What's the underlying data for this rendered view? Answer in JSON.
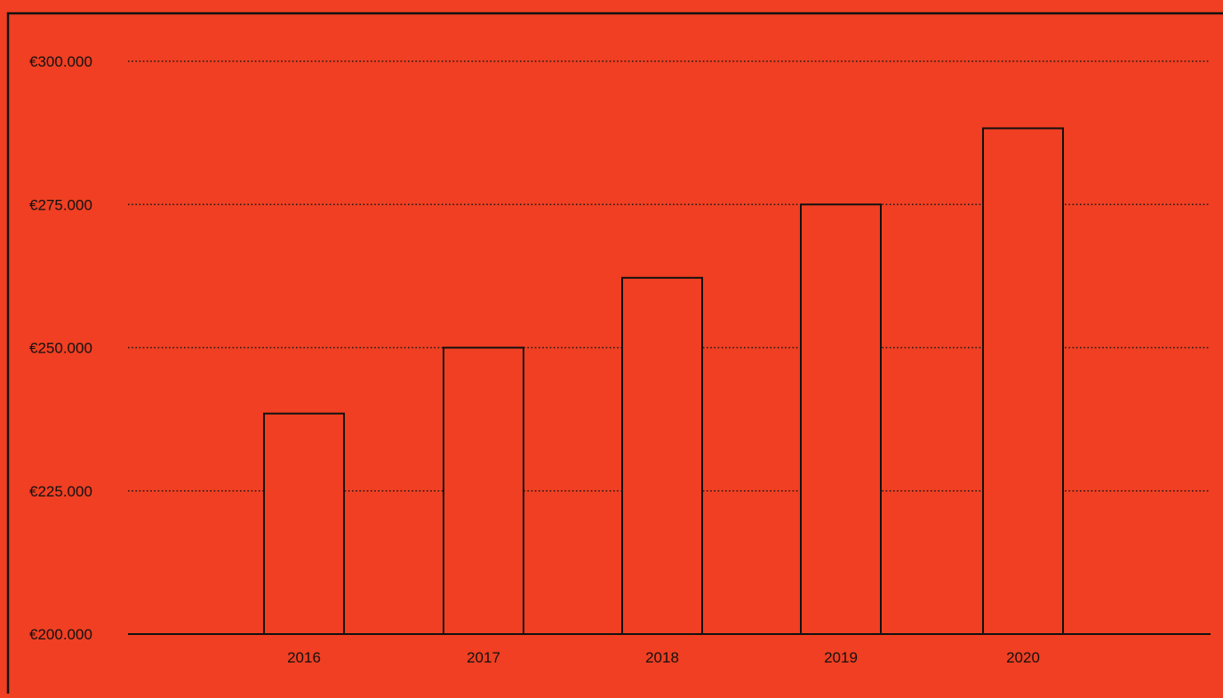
{
  "chart_data": {
    "type": "bar",
    "title": "",
    "xlabel": "",
    "ylabel": "",
    "categories": [
      "2016",
      "2017",
      "2018",
      "2019",
      "2020"
    ],
    "values": [
      238500,
      250000,
      262200,
      275000,
      288300
    ],
    "ylim": [
      200000,
      300000
    ],
    "yticks": [
      200000,
      225000,
      250000,
      275000,
      300000
    ],
    "ytick_labels": [
      "€200.000",
      "€225.000",
      "€250.000",
      "€275.000",
      "€300.000"
    ],
    "grid": "horizontal dotted",
    "legend": "none"
  },
  "colors": {
    "background": "#f03f22",
    "bar_fill": "#f03f22",
    "bar_stroke": "#111111",
    "grid": "#1a1a1a",
    "axis": "#111111"
  }
}
